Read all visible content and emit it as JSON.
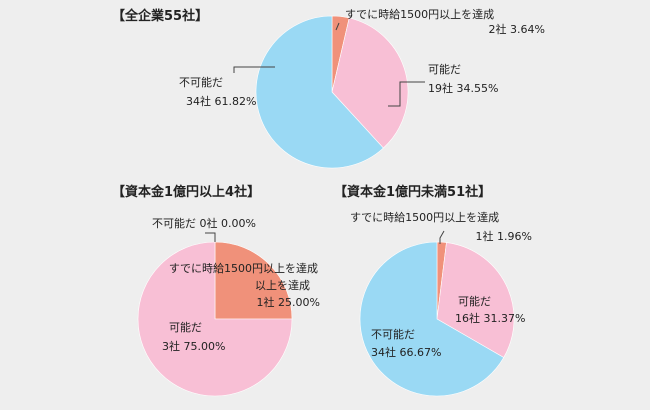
{
  "colors": {
    "background": "#eeeeee",
    "achieved": "#f0917a",
    "possible": "#f8bfd5",
    "not_possible": "#9ad9f4",
    "leader_line": "#444444"
  },
  "chart_data": [
    {
      "type": "pie",
      "title": "【全企業55社】",
      "slices": [
        {
          "name": "すでに時給1500円以上を達成",
          "count_label": "2社",
          "value": 3.64,
          "color": "#f0917a"
        },
        {
          "name": "可能だ",
          "count_label": "19社",
          "value": 34.55,
          "color": "#f8bfd5"
        },
        {
          "name": "不可能だ",
          "count_label": "34社",
          "value": 61.82,
          "color": "#9ad9f4"
        }
      ]
    },
    {
      "type": "pie",
      "title": "【資本金1億円以上4社】",
      "slices": [
        {
          "name": "すでに時給1500円以上を達成",
          "count_label": "1社",
          "value": 25.0,
          "color": "#f0917a"
        },
        {
          "name": "可能だ",
          "count_label": "3社",
          "value": 75.0,
          "color": "#f8bfd5"
        },
        {
          "name": "不可能だ",
          "count_label": "0社",
          "value": 0.0,
          "color": "#9ad9f4"
        }
      ]
    },
    {
      "type": "pie",
      "title": "【資本金1億円未満51社】",
      "slices": [
        {
          "name": "すでに時給1500円以上を達成",
          "count_label": "1社",
          "value": 1.96,
          "color": "#f0917a"
        },
        {
          "name": "可能だ",
          "count_label": "16社",
          "value": 31.37,
          "color": "#f8bfd5"
        },
        {
          "name": "不可能だ",
          "count_label": "34社",
          "value": 66.67,
          "color": "#9ad9f4"
        }
      ]
    }
  ]
}
